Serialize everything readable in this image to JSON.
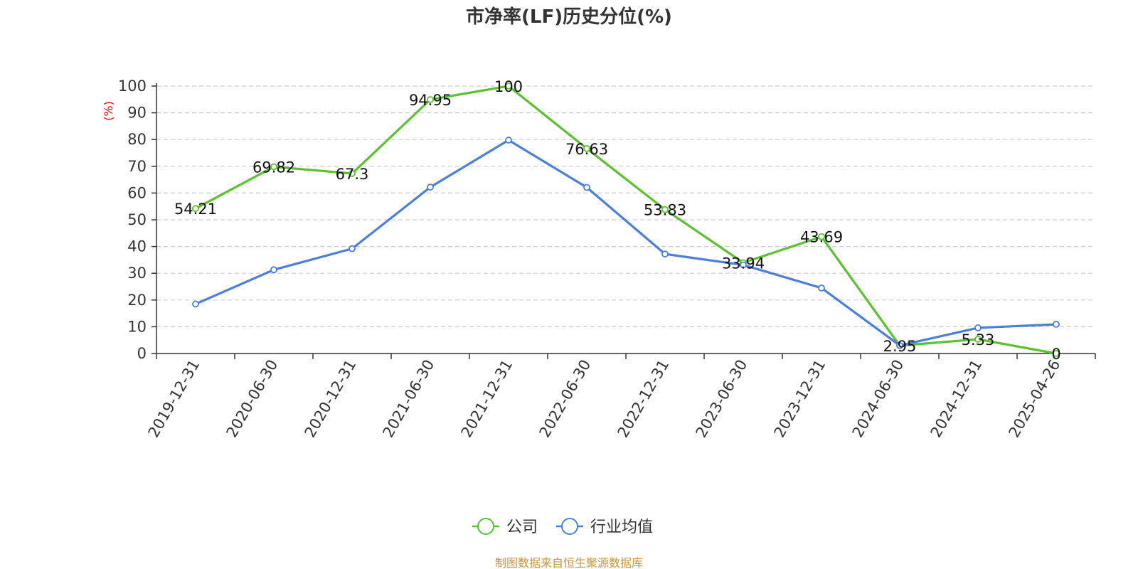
{
  "chart_data": {
    "type": "line",
    "title": "市净率(LF)历史分位(%)",
    "xlabel": "",
    "ylabel": "(%)",
    "ylim": [
      0,
      100
    ],
    "yticks": [
      0,
      10,
      20,
      30,
      40,
      50,
      60,
      70,
      80,
      90,
      100
    ],
    "grid": true,
    "legend_position": "bottom",
    "categories": [
      "2019-12-31",
      "2020-06-30",
      "2020-12-31",
      "2021-06-30",
      "2021-12-31",
      "2022-06-30",
      "2022-12-31",
      "2023-06-30",
      "2023-12-31",
      "2024-06-30",
      "2024-12-31",
      "2025-04-26"
    ],
    "series": [
      {
        "name": "公司",
        "color": "#5ac12f",
        "values": [
          54.21,
          69.82,
          67.3,
          94.95,
          100,
          76.63,
          53.83,
          33.94,
          43.69,
          2.95,
          5.33,
          0
        ],
        "labels": [
          "54.21",
          "69.82",
          "67.3",
          "94.95",
          "100",
          "76.63",
          "53.83",
          "33.94",
          "43.69",
          "2.95",
          "5.33",
          "0"
        ]
      },
      {
        "name": "行业均值",
        "color": "#4a7fdc",
        "values": [
          18.5,
          31.3,
          39.2,
          62.2,
          79.8,
          62.1,
          37.2,
          33.1,
          24.5,
          3.0,
          9.6,
          10.9
        ]
      }
    ]
  },
  "source": "制图数据来自恒生聚源数据库"
}
